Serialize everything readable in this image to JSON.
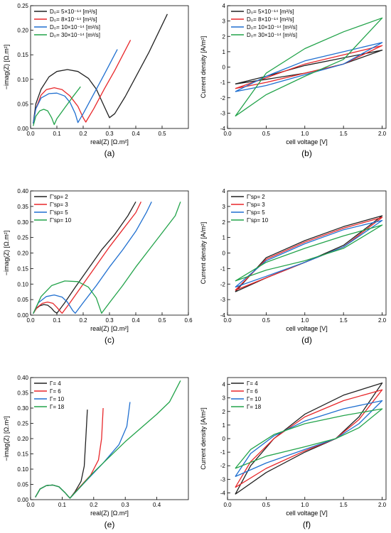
{
  "colors": {
    "black": "#222222",
    "red": "#e8272a",
    "blue": "#1f6fd0",
    "green": "#22a34a"
  },
  "chart_data": [
    {
      "id": "a",
      "type": "line",
      "panel_label": "(a)",
      "xlabel": "real(Z) [Ω.m²]",
      "ylabel": "−imag(Z) [Ω.m²]",
      "xlim": [
        0,
        0.6
      ],
      "ylim": [
        0,
        0.25
      ],
      "xticks": [
        "0.0",
        "0.1",
        "0.2",
        "0.3",
        "0.4",
        "0.5"
      ],
      "xtick_values": [
        0,
        0.1,
        0.2,
        0.3,
        0.4,
        0.5
      ],
      "yticks": [
        "0.00",
        "0.05",
        "0.10",
        "0.15",
        "0.20",
        "0.25"
      ],
      "ytick_values": [
        0,
        0.05,
        0.1,
        0.15,
        0.2,
        0.25
      ],
      "legend": [
        "D₀= 5×10⁻¹⁴ [m²/s]",
        "D₀= 8×10⁻¹⁴ [m²/s]",
        "D₀= 10×10⁻¹⁴ [m²/s]",
        "D₀= 30×10⁻¹⁴ [m²/s]"
      ],
      "series": [
        {
          "color": "black",
          "x": [
            0.01,
            0.02,
            0.04,
            0.07,
            0.1,
            0.14,
            0.18,
            0.22,
            0.25,
            0.28,
            0.3,
            0.32,
            0.36,
            0.4,
            0.45,
            0.52
          ],
          "y": [
            0.01,
            0.05,
            0.08,
            0.105,
            0.116,
            0.12,
            0.116,
            0.102,
            0.08,
            0.045,
            0.022,
            0.03,
            0.065,
            0.105,
            0.155,
            0.233
          ]
        },
        {
          "color": "red",
          "x": [
            0.01,
            0.02,
            0.04,
            0.06,
            0.09,
            0.12,
            0.15,
            0.18,
            0.2,
            0.21,
            0.24,
            0.28,
            0.32,
            0.38
          ],
          "y": [
            0.01,
            0.04,
            0.068,
            0.079,
            0.083,
            0.079,
            0.066,
            0.045,
            0.022,
            0.013,
            0.04,
            0.08,
            0.118,
            0.18
          ]
        },
        {
          "color": "blue",
          "x": [
            0.01,
            0.02,
            0.04,
            0.07,
            0.1,
            0.13,
            0.15,
            0.17,
            0.18,
            0.2,
            0.24,
            0.28,
            0.33
          ],
          "y": [
            0.01,
            0.04,
            0.062,
            0.071,
            0.072,
            0.066,
            0.053,
            0.03,
            0.012,
            0.03,
            0.07,
            0.11,
            0.161
          ]
        },
        {
          "color": "green",
          "x": [
            0.01,
            0.02,
            0.035,
            0.05,
            0.065,
            0.08,
            0.09,
            0.1,
            0.13,
            0.16,
            0.19
          ],
          "y": [
            0.005,
            0.025,
            0.036,
            0.039,
            0.036,
            0.022,
            0.008,
            0.02,
            0.042,
            0.064,
            0.085
          ]
        }
      ]
    },
    {
      "id": "b",
      "type": "line",
      "panel_label": "(b)",
      "xlabel": "cell voltage [V]",
      "ylabel": "Current density [A/m²]",
      "xlim": [
        0,
        2.05
      ],
      "ylim": [
        -4,
        4
      ],
      "xticks": [
        "0.0",
        "0.5",
        "1.0",
        "1.5",
        "2.0"
      ],
      "xtick_values": [
        0,
        0.5,
        1,
        1.5,
        2
      ],
      "yticks": [
        "-4",
        "-3",
        "-2",
        "-1",
        "0",
        "1",
        "2",
        "3",
        "4"
      ],
      "ytick_values": [
        -4,
        -3,
        -2,
        -1,
        0,
        1,
        2,
        3,
        4
      ],
      "legend": [
        "D₀= 5×10⁻¹⁴ [m²/s]",
        "D₀= 8×10⁻¹⁴ [m²/s]",
        "D₀= 10×10⁻¹⁴ [m²/s]",
        "D₀= 30×10⁻¹⁴ [m²/s]"
      ],
      "series": [
        {
          "color": "black",
          "x": [
            0.1,
            0.5,
            1.0,
            1.5,
            2.0,
            1.5,
            1.0,
            0.5,
            0.1
          ],
          "y": [
            -1.1,
            -0.6,
            0.1,
            0.6,
            1.1,
            0.2,
            -0.4,
            -0.8,
            -1.1
          ]
        },
        {
          "color": "red",
          "x": [
            0.1,
            0.5,
            1.0,
            1.5,
            2.0,
            1.5,
            1.0,
            0.5,
            0.1
          ],
          "y": [
            -1.4,
            -0.7,
            0.2,
            0.8,
            1.4,
            0.2,
            -0.4,
            -1.0,
            -1.4
          ]
        },
        {
          "color": "blue",
          "x": [
            0.1,
            0.5,
            1.0,
            1.5,
            2.0,
            1.5,
            1.0,
            0.5,
            0.1
          ],
          "y": [
            -1.6,
            -0.6,
            0.4,
            1.0,
            1.6,
            0.2,
            -0.5,
            -1.2,
            -1.6
          ]
        },
        {
          "color": "green",
          "x": [
            0.1,
            0.5,
            1.0,
            1.5,
            2.0,
            1.5,
            1.0,
            0.5,
            0.1
          ],
          "y": [
            -3.2,
            -0.4,
            1.2,
            2.3,
            3.2,
            0.5,
            -0.6,
            -1.8,
            -3.2
          ]
        }
      ]
    },
    {
      "id": "c",
      "type": "line",
      "panel_label": "(c)",
      "xlabel": "real(Z) [Ω.m²]",
      "ylabel": "−imag(Z) [Ω.m²]",
      "xlim": [
        0,
        0.6
      ],
      "ylim": [
        0,
        0.4
      ],
      "xticks": [
        "0.0",
        "0.1",
        "0.2",
        "0.3",
        "0.4",
        "0.5",
        "0.6"
      ],
      "xtick_values": [
        0,
        0.1,
        0.2,
        0.3,
        0.4,
        0.5,
        0.6
      ],
      "yticks": [
        "0.00",
        "0.05",
        "0.10",
        "0.15",
        "0.20",
        "0.25",
        "0.30",
        "0.35",
        "0.40"
      ],
      "ytick_values": [
        0,
        0.05,
        0.1,
        0.15,
        0.2,
        0.25,
        0.3,
        0.35,
        0.4
      ],
      "legend": [
        "Γʹsp= 2",
        "Γʹsp= 3",
        "Γʹsp= 5",
        "Γʹsp= 10"
      ],
      "series": [
        {
          "color": "black",
          "x": [
            0.01,
            0.02,
            0.035,
            0.05,
            0.065,
            0.08,
            0.09,
            0.1,
            0.13,
            0.17,
            0.22,
            0.27,
            0.32,
            0.37,
            0.4
          ],
          "y": [
            0.005,
            0.02,
            0.03,
            0.034,
            0.032,
            0.022,
            0.012,
            0.006,
            0.04,
            0.09,
            0.15,
            0.21,
            0.26,
            0.32,
            0.365
          ]
        },
        {
          "color": "red",
          "x": [
            0.01,
            0.025,
            0.045,
            0.065,
            0.085,
            0.1,
            0.115,
            0.12,
            0.15,
            0.2,
            0.25,
            0.3,
            0.35,
            0.4,
            0.42
          ],
          "y": [
            0.005,
            0.025,
            0.038,
            0.042,
            0.038,
            0.025,
            0.01,
            0.006,
            0.04,
            0.1,
            0.16,
            0.22,
            0.275,
            0.33,
            0.365
          ]
        },
        {
          "color": "blue",
          "x": [
            0.01,
            0.03,
            0.06,
            0.09,
            0.12,
            0.14,
            0.16,
            0.17,
            0.2,
            0.25,
            0.3,
            0.35,
            0.4,
            0.44,
            0.46
          ],
          "y": [
            0.005,
            0.04,
            0.06,
            0.065,
            0.058,
            0.042,
            0.015,
            0.006,
            0.04,
            0.095,
            0.155,
            0.21,
            0.27,
            0.33,
            0.365
          ]
        },
        {
          "color": "green",
          "x": [
            0.01,
            0.04,
            0.08,
            0.13,
            0.18,
            0.22,
            0.25,
            0.27,
            0.3,
            0.35,
            0.4,
            0.45,
            0.5,
            0.55,
            0.57
          ],
          "y": [
            0.005,
            0.06,
            0.095,
            0.11,
            0.108,
            0.09,
            0.055,
            0.006,
            0.04,
            0.095,
            0.155,
            0.21,
            0.265,
            0.32,
            0.365
          ]
        }
      ]
    },
    {
      "id": "d",
      "type": "line",
      "panel_label": "(d)",
      "xlabel": "cell voltage [V]",
      "ylabel": "Current density [A/m²]",
      "xlim": [
        0,
        2.05
      ],
      "ylim": [
        -4,
        4
      ],
      "xticks": [
        "0.0",
        "0.5",
        "1.0",
        "1.5",
        "2.0"
      ],
      "xtick_values": [
        0,
        0.5,
        1,
        1.5,
        2
      ],
      "yticks": [
        "-4",
        "-3",
        "-2",
        "-1",
        "0",
        "1",
        "2",
        "3",
        "4"
      ],
      "ytick_values": [
        -4,
        -3,
        -2,
        -1,
        0,
        1,
        2,
        3,
        4
      ],
      "legend": [
        "Γʹsp= 2",
        "Γʹsp= 3",
        "Γʹsp= 5",
        "Γʹsp= 10"
      ],
      "series": [
        {
          "color": "black",
          "x": [
            0.1,
            0.5,
            1.0,
            1.5,
            2.0,
            1.5,
            1.0,
            0.5,
            0.1
          ],
          "y": [
            -2.5,
            -0.3,
            0.8,
            1.7,
            2.4,
            0.5,
            -0.6,
            -1.6,
            -2.5
          ]
        },
        {
          "color": "red",
          "x": [
            0.1,
            0.5,
            1.0,
            1.5,
            2.0,
            1.5,
            1.0,
            0.5,
            0.1
          ],
          "y": [
            -2.4,
            -0.4,
            0.7,
            1.6,
            2.3,
            0.4,
            -0.6,
            -1.6,
            -2.4
          ]
        },
        {
          "color": "blue",
          "x": [
            0.1,
            0.5,
            1.0,
            1.5,
            2.0,
            1.5,
            1.0,
            0.5,
            0.1
          ],
          "y": [
            -2.2,
            -0.5,
            0.6,
            1.5,
            2.1,
            0.4,
            -0.6,
            -1.5,
            -2.2
          ]
        },
        {
          "color": "green",
          "x": [
            0.1,
            0.5,
            1.0,
            1.5,
            2.0,
            1.5,
            1.0,
            0.5,
            0.1
          ],
          "y": [
            -1.8,
            -0.6,
            0.3,
            1.1,
            1.8,
            0.3,
            -0.5,
            -1.1,
            -1.8
          ]
        }
      ]
    },
    {
      "id": "e",
      "type": "line",
      "panel_label": "(e)",
      "xlabel": "real(Z) [Ω.m²]",
      "ylabel": "−imag(Z) [Ω.m²]",
      "xlim": [
        0,
        0.5
      ],
      "ylim": [
        0,
        0.4
      ],
      "xticks": [
        "0.0",
        "0.1",
        "0.2",
        "0.3",
        "0.4"
      ],
      "xtick_values": [
        0,
        0.1,
        0.2,
        0.3,
        0.4
      ],
      "yticks": [
        "0.00",
        "0.05",
        "0.10",
        "0.15",
        "0.20",
        "0.25",
        "0.30",
        "0.35",
        "0.40"
      ],
      "ytick_values": [
        0,
        0.05,
        0.1,
        0.15,
        0.2,
        0.25,
        0.3,
        0.35,
        0.4
      ],
      "legend": [
        "Γ= 4",
        "Γ= 6",
        "Γ= 10",
        "Γ= 18"
      ],
      "series": [
        {
          "color": "black",
          "x": [
            0.015,
            0.03,
            0.05,
            0.07,
            0.09,
            0.11,
            0.12,
            0.125,
            0.14,
            0.16,
            0.17,
            0.175,
            0.18
          ],
          "y": [
            0.008,
            0.035,
            0.046,
            0.048,
            0.042,
            0.022,
            0.01,
            0.005,
            0.025,
            0.06,
            0.11,
            0.2,
            0.295
          ]
        },
        {
          "color": "red",
          "x": [
            0.015,
            0.03,
            0.05,
            0.07,
            0.09,
            0.11,
            0.12,
            0.125,
            0.15,
            0.19,
            0.215,
            0.225,
            0.23
          ],
          "y": [
            0.008,
            0.035,
            0.046,
            0.048,
            0.042,
            0.022,
            0.01,
            0.005,
            0.035,
            0.08,
            0.13,
            0.2,
            0.3
          ]
        },
        {
          "color": "blue",
          "x": [
            0.015,
            0.03,
            0.05,
            0.07,
            0.09,
            0.11,
            0.12,
            0.125,
            0.17,
            0.23,
            0.28,
            0.305,
            0.315
          ],
          "y": [
            0.008,
            0.035,
            0.046,
            0.048,
            0.042,
            0.022,
            0.01,
            0.005,
            0.055,
            0.12,
            0.18,
            0.24,
            0.32
          ]
        },
        {
          "color": "green",
          "x": [
            0.015,
            0.03,
            0.05,
            0.07,
            0.09,
            0.11,
            0.12,
            0.125,
            0.2,
            0.3,
            0.4,
            0.44,
            0.475
          ],
          "y": [
            0.008,
            0.035,
            0.046,
            0.048,
            0.042,
            0.022,
            0.01,
            0.005,
            0.09,
            0.19,
            0.28,
            0.32,
            0.39
          ]
        }
      ]
    },
    {
      "id": "f",
      "type": "line",
      "panel_label": "(f)",
      "xlabel": "cell voltage [V]",
      "ylabel": "Current density [A/m²]",
      "xlim": [
        0,
        2.05
      ],
      "ylim": [
        -4.5,
        4.5
      ],
      "xticks": [
        "0.0",
        "0.5",
        "1.0",
        "1.5",
        "2.0"
      ],
      "xtick_values": [
        0,
        0.5,
        1,
        1.5,
        2
      ],
      "yticks": [
        "-4",
        "-3",
        "-2",
        "-1",
        "0",
        "1",
        "2",
        "3",
        "4"
      ],
      "ytick_values": [
        -4,
        -3,
        -2,
        -1,
        0,
        1,
        2,
        3,
        4
      ],
      "legend": [
        "Γ= 4",
        "Γ= 6",
        "Γ= 10",
        "Γ= 18"
      ],
      "series": [
        {
          "color": "black",
          "x": [
            0.1,
            0.3,
            0.6,
            1.0,
            1.5,
            2.0,
            1.7,
            1.4,
            1.0,
            0.5,
            0.1
          ],
          "y": [
            -4.1,
            -2.0,
            0.0,
            1.8,
            3.2,
            4.1,
            1.6,
            0.0,
            -1.0,
            -2.5,
            -4.1
          ]
        },
        {
          "color": "red",
          "x": [
            0.1,
            0.3,
            0.6,
            1.0,
            1.5,
            2.0,
            1.7,
            1.4,
            1.0,
            0.5,
            0.1
          ],
          "y": [
            -3.6,
            -1.7,
            0.0,
            1.6,
            2.8,
            3.6,
            1.4,
            0.0,
            -0.9,
            -2.2,
            -3.6
          ]
        },
        {
          "color": "blue",
          "x": [
            0.1,
            0.3,
            0.6,
            1.0,
            1.5,
            2.0,
            1.7,
            1.4,
            1.0,
            0.5,
            0.1
          ],
          "y": [
            -2.8,
            -1.1,
            0.2,
            1.3,
            2.2,
            2.8,
            1.1,
            0.0,
            -0.8,
            -1.8,
            -2.8
          ]
        },
        {
          "color": "green",
          "x": [
            0.1,
            0.3,
            0.6,
            1.0,
            1.5,
            2.0,
            1.7,
            1.4,
            1.0,
            0.5,
            0.1
          ],
          "y": [
            -2.2,
            -0.8,
            0.3,
            1.1,
            1.7,
            2.2,
            0.8,
            0.0,
            -0.6,
            -1.3,
            -2.2
          ]
        }
      ]
    }
  ]
}
